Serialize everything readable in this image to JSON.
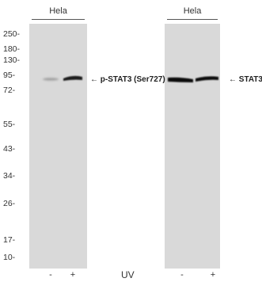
{
  "headers": {
    "left": "Hela",
    "right": "Hela"
  },
  "markers": [
    {
      "label": "250-",
      "kda": 250
    },
    {
      "label": "180-",
      "kda": 180
    },
    {
      "label": "130-",
      "kda": 130
    },
    {
      "label": "95-",
      "kda": 95
    },
    {
      "label": "72-",
      "kda": 72
    },
    {
      "label": "55-",
      "kda": 55
    },
    {
      "label": "43-",
      "kda": 43
    },
    {
      "label": "34-",
      "kda": 34
    },
    {
      "label": "26-",
      "kda": 26
    },
    {
      "label": "17-",
      "kda": 17
    },
    {
      "label": "10-",
      "kda": 10
    }
  ],
  "band_labels": {
    "left": "← p-STAT3 (Ser727)",
    "right": "← STAT3"
  },
  "lanes": {
    "left": [
      "-",
      "+"
    ],
    "right": [
      "-",
      "+"
    ]
  },
  "treatment_label": "UV",
  "colors": {
    "panel": "#d9d9d9",
    "band": "#1a1a1a"
  }
}
